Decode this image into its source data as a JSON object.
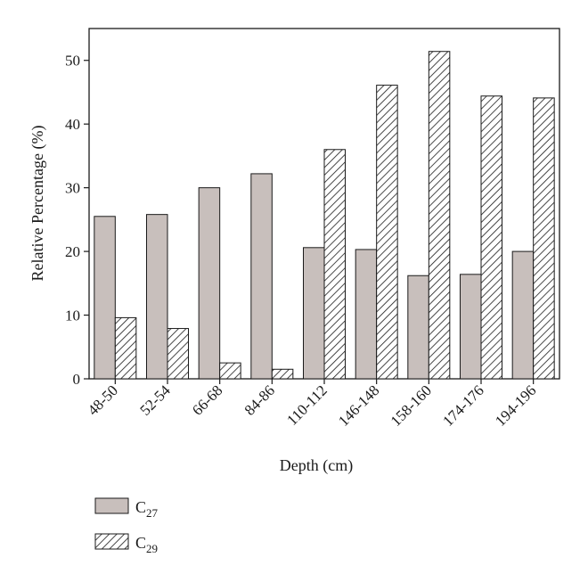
{
  "chart_data": {
    "type": "bar",
    "title": "",
    "xlabel": "Depth (cm)",
    "ylabel": "Relative Percentage (%)",
    "ylim": [
      0,
      55
    ],
    "yticks": [
      0,
      10,
      20,
      30,
      40,
      50
    ],
    "categories": [
      "48-50",
      "52-54",
      "66-68",
      "84-86",
      "110-112",
      "146-148",
      "158-160",
      "174-176",
      "194-196"
    ],
    "series": [
      {
        "name": "C27",
        "label_base": "C",
        "label_sub": "27",
        "fill": "solid",
        "color": "#c8bfbc",
        "values": [
          25.5,
          25.8,
          30.0,
          32.2,
          20.6,
          20.3,
          16.2,
          16.4,
          20.0
        ]
      },
      {
        "name": "C29",
        "label_base": "C",
        "label_sub": "29",
        "fill": "diagonal-hatch",
        "color": "#1a1a1a",
        "values": [
          9.6,
          7.9,
          2.5,
          1.5,
          36.0,
          46.1,
          51.4,
          44.4,
          44.1
        ]
      }
    ],
    "grid": false,
    "legend_position": "bottom-left"
  }
}
